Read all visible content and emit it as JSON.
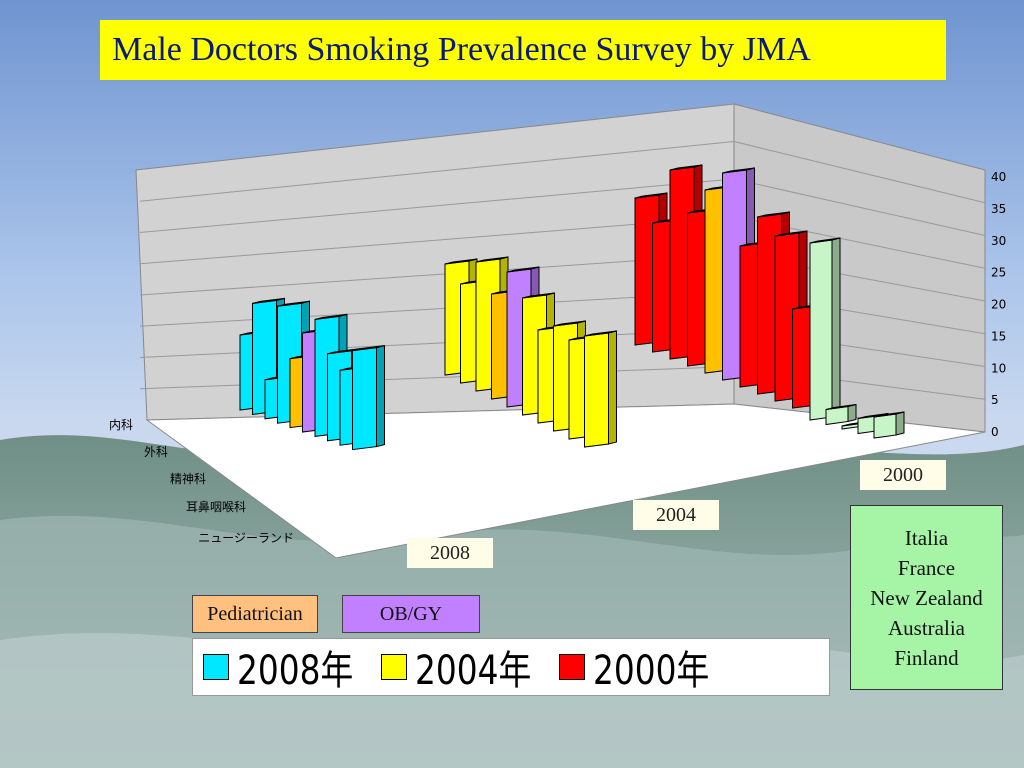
{
  "slide": {
    "title": "Male Doctors Smoking Prevalence Survey by JMA",
    "year_labels": [
      "2008",
      "2004",
      "2000"
    ],
    "tags": [
      {
        "label": "Pediatrician",
        "color": "#ffc080"
      },
      {
        "label": "OB/GY",
        "color": "#c080ff"
      }
    ],
    "countries": [
      "Italia",
      "France",
      "New Zealand",
      "Australia",
      "Finland"
    ]
  },
  "chart_data": {
    "type": "bar",
    "title": "",
    "y_ticks": [
      "0",
      "5",
      "10",
      "15",
      "20",
      "25",
      "30",
      "35",
      "40"
    ],
    "ylim": [
      0,
      40
    ],
    "depth_labels": [
      "内科",
      "外科",
      "精神科",
      "耳鼻咽喉科",
      "ニュージーランド"
    ],
    "legend": [
      {
        "name": "2008年",
        "color": "#00e8ff"
      },
      {
        "name": "2004年",
        "color": "#ffff00"
      },
      {
        "name": "2000年",
        "color": "#ff0000"
      }
    ],
    "series": [
      {
        "name": "2008年",
        "color": "#00e8ff",
        "values": [
          13,
          19,
          7,
          20,
          12,
          17,
          20,
          15,
          13,
          17
        ]
      },
      {
        "name": "2004年",
        "color": "#ffff00",
        "values": [
          19,
          17,
          22,
          18,
          23,
          20,
          16,
          18,
          17,
          19
        ]
      },
      {
        "name": "2000年",
        "color": "#ff0000",
        "values": [
          25,
          22,
          32,
          26,
          31,
          35,
          24,
          30,
          28,
          17
        ]
      },
      {
        "name": "2000",
        "color": "#c8f5c8",
        "values": [
          30,
          3,
          1,
          3,
          4
        ]
      }
    ],
    "accents": [
      {
        "series": "2008年",
        "index": 4,
        "color": "#ffc000"
      },
      {
        "series": "2008年",
        "index": 5,
        "color": "#c080ff"
      },
      {
        "series": "2004年",
        "index": 3,
        "color": "#ffc000"
      },
      {
        "series": "2004年",
        "index": 4,
        "color": "#c080ff"
      },
      {
        "series": "2000年",
        "index": 4,
        "color": "#ffc000"
      },
      {
        "series": "2000年",
        "index": 5,
        "color": "#c080ff"
      }
    ]
  }
}
